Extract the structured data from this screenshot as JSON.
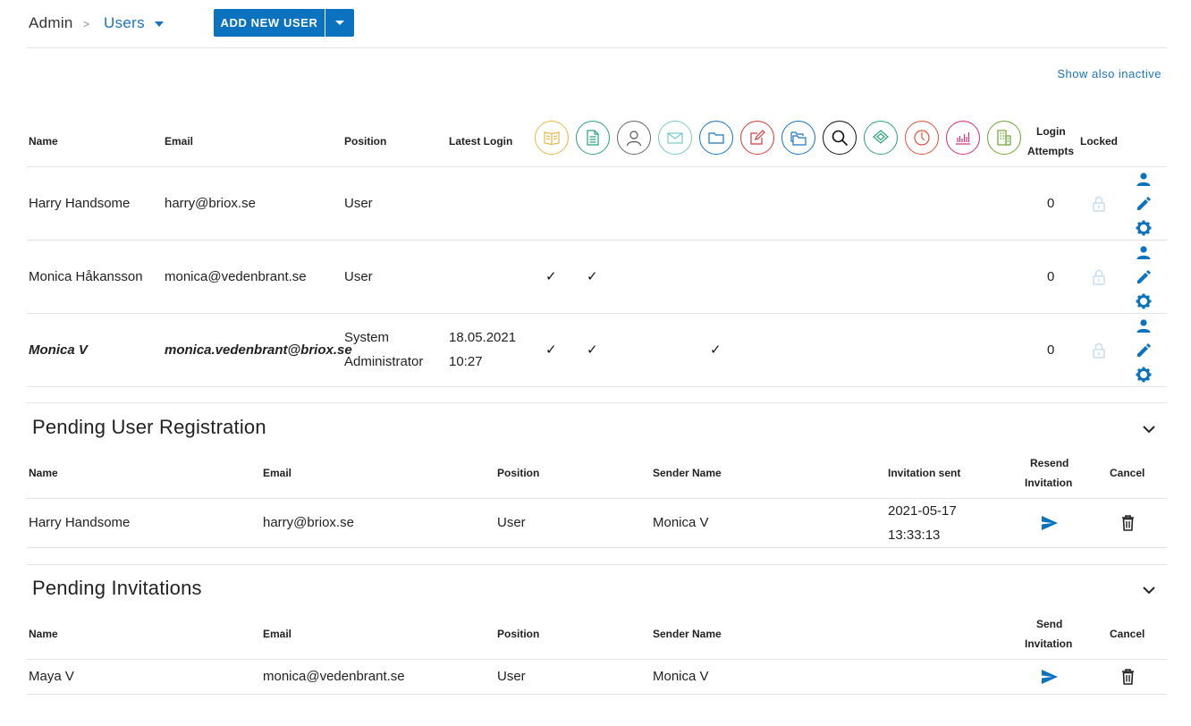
{
  "breadcrumb": {
    "root": "Admin",
    "separator": ">",
    "current": "Users"
  },
  "toolbar": {
    "add_user_label": "ADD NEW USER"
  },
  "filters": {
    "show_inactive_label": "Show also inactive"
  },
  "users_table": {
    "headers": {
      "name": "Name",
      "email": "Email",
      "position": "Position",
      "latest_login": "Latest Login",
      "login_attempts_line1": "Login",
      "login_attempts_line2": "Attempts",
      "locked": "Locked"
    },
    "permission_columns": [
      {
        "icon": "book-icon",
        "color": "#e8b84a"
      },
      {
        "icon": "document-icon",
        "color": "#2aa37a"
      },
      {
        "icon": "person-icon",
        "color": "#666666"
      },
      {
        "icon": "mail-icon",
        "color": "#7cc9c4"
      },
      {
        "icon": "folder-icon",
        "color": "#1a73c1"
      },
      {
        "icon": "edit-icon",
        "color": "#d9383a"
      },
      {
        "icon": "folders-icon",
        "color": "#1a73c1"
      },
      {
        "icon": "search-icon",
        "color": "#111111"
      },
      {
        "icon": "layers-icon",
        "color": "#2aa37a"
      },
      {
        "icon": "clock-icon",
        "color": "#e0503a"
      },
      {
        "icon": "bar-chart-icon",
        "color": "#d62d74"
      },
      {
        "icon": "building-icon",
        "color": "#6aa635"
      }
    ],
    "rows": [
      {
        "name": "Harry Handsome",
        "email": "harry@briox.se",
        "position": "User",
        "login_line1": "",
        "login_line2": "",
        "login_attempts": "0"
      },
      {
        "name": "Monica Håkansson",
        "email": "monica@vedenbrant.se",
        "position": "User",
        "login_line1": "",
        "login_line2": "",
        "login_attempts": "0"
      },
      {
        "name": "Monica V",
        "email": "monica.vedenbrant@briox.se",
        "position_line1": "System",
        "position_line2": "Administrator",
        "login_line1": "18.05.2021",
        "login_line2": "10:27",
        "login_attempts": "0"
      }
    ],
    "check_glyph": "✓"
  },
  "pending_registration": {
    "title": "Pending User Registration",
    "headers": {
      "name": "Name",
      "email": "Email",
      "position": "Position",
      "sender": "Sender Name",
      "invitation_sent": "Invitation sent",
      "resend_line1": "Resend",
      "resend_line2": "Invitation",
      "cancel": "Cancel"
    },
    "rows": [
      {
        "name": "Harry Handsome",
        "email": "harry@briox.se",
        "position": "User",
        "sender": "Monica V",
        "sent_line1": "2021-05-17",
        "sent_line2": "13:33:13"
      }
    ]
  },
  "pending_invitations": {
    "title": "Pending Invitations",
    "headers": {
      "name": "Name",
      "email": "Email",
      "position": "Position",
      "sender": "Sender Name",
      "send_line1": "Send",
      "send_line2": "Invitation",
      "cancel": "Cancel"
    },
    "rows": [
      {
        "name": "Maya V",
        "email": "monica@vedenbrant.se",
        "position": "User",
        "sender": "Monica V"
      }
    ]
  },
  "colors": {
    "primary": "#0a72be",
    "link": "#1a73c1",
    "lock_faint": "#c6ddf0",
    "divider": "#e3e3e3"
  }
}
